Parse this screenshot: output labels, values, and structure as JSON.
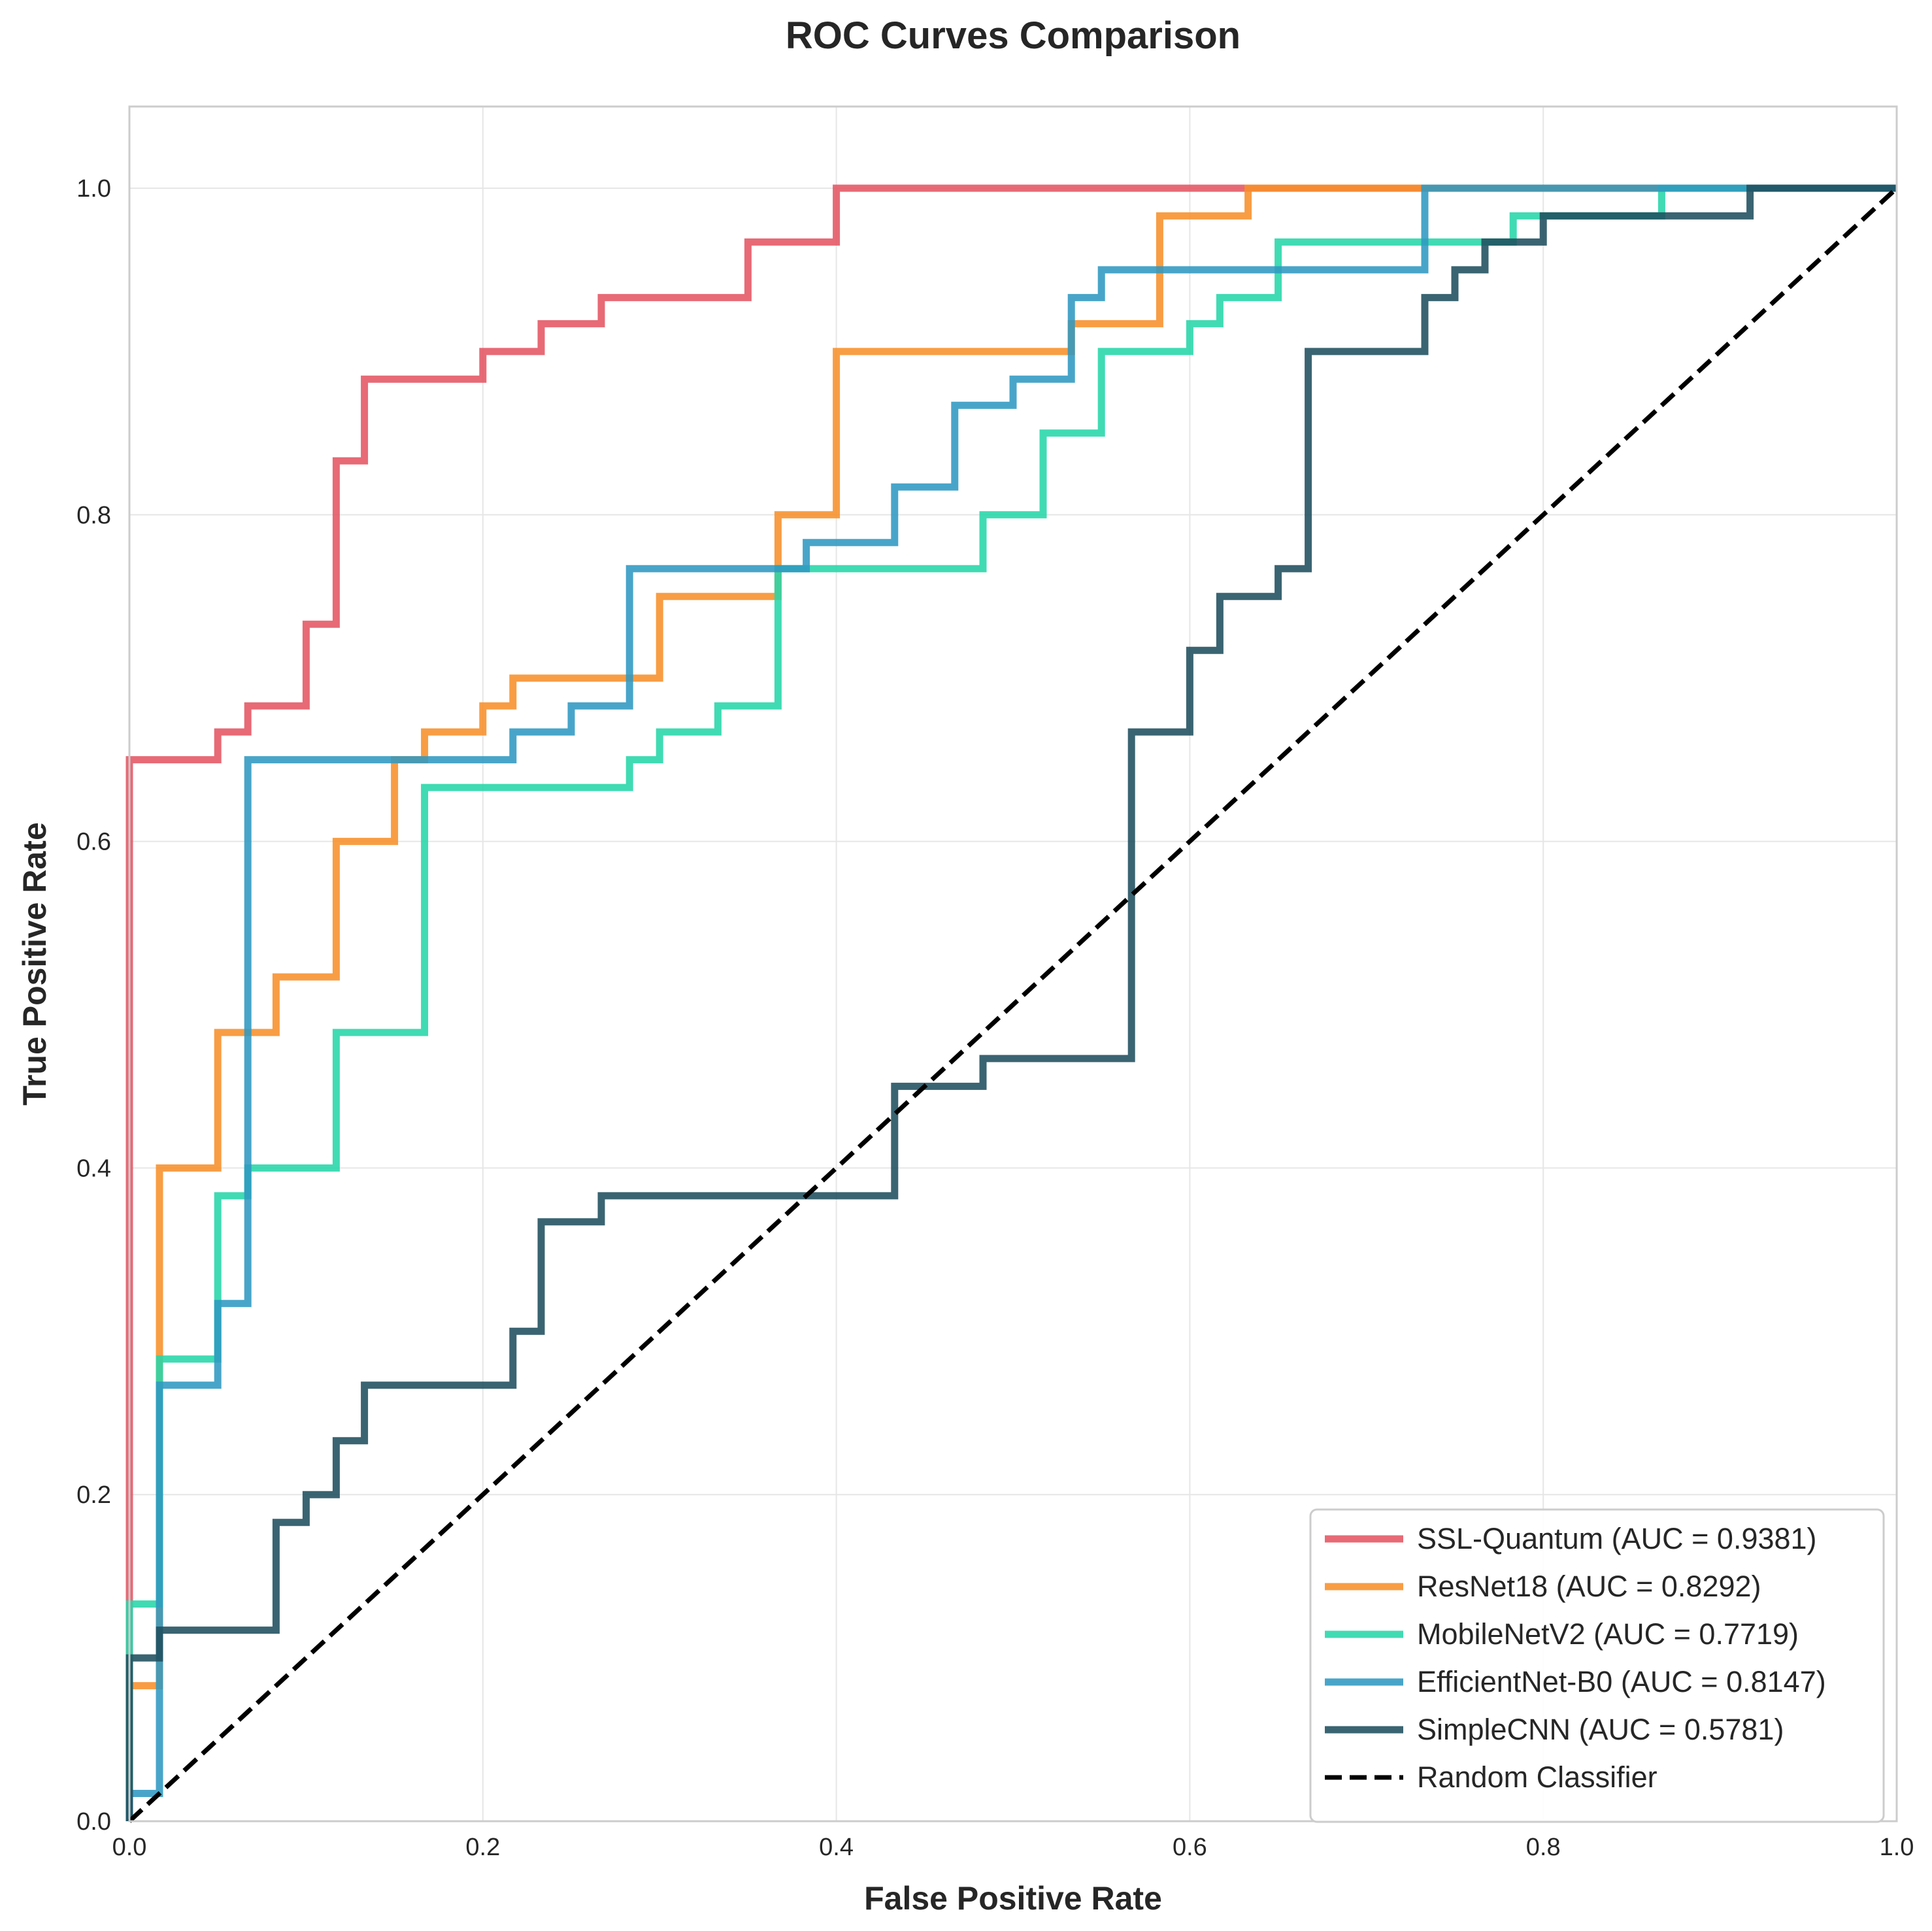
{
  "chart_data": {
    "type": "line",
    "title": "ROC Curves Comparison",
    "xlabel": "False Positive Rate",
    "ylabel": "True Positive Rate",
    "xlim": [
      0.0,
      1.0
    ],
    "ylim": [
      0.0,
      1.05
    ],
    "xticks": [
      "0.0",
      "0.2",
      "0.4",
      "0.6",
      "0.8",
      "1.0"
    ],
    "yticks": [
      "0.0",
      "0.2",
      "0.4",
      "0.6",
      "0.8",
      "1.0"
    ],
    "grid": true,
    "legend_position": "lower-right",
    "series": [
      {
        "name": "SSL-Quantum (AUC = 0.9381)",
        "color": "#e45563",
        "points": [
          [
            0,
            0
          ],
          [
            0,
            0.65
          ],
          [
            0.05,
            0.65
          ],
          [
            0.05,
            0.667
          ],
          [
            0.067,
            0.667
          ],
          [
            0.067,
            0.683
          ],
          [
            0.1,
            0.683
          ],
          [
            0.1,
            0.733
          ],
          [
            0.117,
            0.733
          ],
          [
            0.117,
            0.833
          ],
          [
            0.133,
            0.833
          ],
          [
            0.133,
            0.883
          ],
          [
            0.2,
            0.883
          ],
          [
            0.2,
            0.9
          ],
          [
            0.233,
            0.9
          ],
          [
            0.233,
            0.917
          ],
          [
            0.267,
            0.917
          ],
          [
            0.267,
            0.933
          ],
          [
            0.35,
            0.933
          ],
          [
            0.35,
            0.967
          ],
          [
            0.4,
            0.967
          ],
          [
            0.4,
            1.0
          ],
          [
            1.0,
            1.0
          ]
        ]
      },
      {
        "name": "ResNet18 (AUC = 0.8292)",
        "color": "#f78f2a",
        "points": [
          [
            0,
            0
          ],
          [
            0,
            0.083
          ],
          [
            0.017,
            0.083
          ],
          [
            0.017,
            0.4
          ],
          [
            0.05,
            0.4
          ],
          [
            0.05,
            0.483
          ],
          [
            0.083,
            0.483
          ],
          [
            0.083,
            0.517
          ],
          [
            0.117,
            0.517
          ],
          [
            0.117,
            0.6
          ],
          [
            0.15,
            0.6
          ],
          [
            0.15,
            0.65
          ],
          [
            0.167,
            0.65
          ],
          [
            0.167,
            0.667
          ],
          [
            0.2,
            0.667
          ],
          [
            0.2,
            0.683
          ],
          [
            0.217,
            0.683
          ],
          [
            0.217,
            0.7
          ],
          [
            0.3,
            0.7
          ],
          [
            0.3,
            0.75
          ],
          [
            0.367,
            0.75
          ],
          [
            0.367,
            0.8
          ],
          [
            0.4,
            0.8
          ],
          [
            0.4,
            0.9
          ],
          [
            0.533,
            0.9
          ],
          [
            0.533,
            0.917
          ],
          [
            0.583,
            0.917
          ],
          [
            0.583,
            0.983
          ],
          [
            0.633,
            0.983
          ],
          [
            0.633,
            1.0
          ],
          [
            1.0,
            1.0
          ]
        ]
      },
      {
        "name": "MobileNetV2 (AUC = 0.7719)",
        "color": "#26d6a9",
        "points": [
          [
            0,
            0
          ],
          [
            0,
            0.133
          ],
          [
            0.017,
            0.133
          ],
          [
            0.017,
            0.283
          ],
          [
            0.05,
            0.283
          ],
          [
            0.05,
            0.383
          ],
          [
            0.067,
            0.383
          ],
          [
            0.067,
            0.4
          ],
          [
            0.117,
            0.4
          ],
          [
            0.117,
            0.483
          ],
          [
            0.167,
            0.483
          ],
          [
            0.167,
            0.633
          ],
          [
            0.283,
            0.633
          ],
          [
            0.283,
            0.65
          ],
          [
            0.3,
            0.65
          ],
          [
            0.3,
            0.667
          ],
          [
            0.333,
            0.667
          ],
          [
            0.333,
            0.683
          ],
          [
            0.367,
            0.683
          ],
          [
            0.367,
            0.767
          ],
          [
            0.483,
            0.767
          ],
          [
            0.483,
            0.8
          ],
          [
            0.517,
            0.8
          ],
          [
            0.517,
            0.85
          ],
          [
            0.55,
            0.85
          ],
          [
            0.55,
            0.9
          ],
          [
            0.6,
            0.9
          ],
          [
            0.6,
            0.917
          ],
          [
            0.617,
            0.917
          ],
          [
            0.617,
            0.933
          ],
          [
            0.65,
            0.933
          ],
          [
            0.65,
            0.967
          ],
          [
            0.783,
            0.967
          ],
          [
            0.783,
            0.983
          ],
          [
            0.867,
            0.983
          ],
          [
            0.867,
            1.0
          ],
          [
            1.0,
            1.0
          ]
        ]
      },
      {
        "name": "EfficientNet-B0 (AUC = 0.8147)",
        "color": "#2f98c1",
        "points": [
          [
            0,
            0
          ],
          [
            0,
            0.017
          ],
          [
            0.017,
            0.017
          ],
          [
            0.017,
            0.267
          ],
          [
            0.05,
            0.267
          ],
          [
            0.05,
            0.317
          ],
          [
            0.067,
            0.317
          ],
          [
            0.067,
            0.65
          ],
          [
            0.217,
            0.65
          ],
          [
            0.217,
            0.667
          ],
          [
            0.25,
            0.667
          ],
          [
            0.25,
            0.683
          ],
          [
            0.283,
            0.683
          ],
          [
            0.283,
            0.767
          ],
          [
            0.383,
            0.767
          ],
          [
            0.383,
            0.783
          ],
          [
            0.433,
            0.783
          ],
          [
            0.433,
            0.817
          ],
          [
            0.467,
            0.817
          ],
          [
            0.467,
            0.867
          ],
          [
            0.5,
            0.867
          ],
          [
            0.5,
            0.883
          ],
          [
            0.533,
            0.883
          ],
          [
            0.533,
            0.933
          ],
          [
            0.55,
            0.933
          ],
          [
            0.55,
            0.95
          ],
          [
            0.733,
            0.95
          ],
          [
            0.733,
            1.0
          ],
          [
            1.0,
            1.0
          ]
        ]
      },
      {
        "name": "SimpleCNN (AUC = 0.5781)",
        "color": "#1f4e5f",
        "points": [
          [
            0,
            0
          ],
          [
            0,
            0.1
          ],
          [
            0.017,
            0.1
          ],
          [
            0.017,
            0.117
          ],
          [
            0.083,
            0.117
          ],
          [
            0.083,
            0.183
          ],
          [
            0.1,
            0.183
          ],
          [
            0.1,
            0.2
          ],
          [
            0.117,
            0.2
          ],
          [
            0.117,
            0.233
          ],
          [
            0.133,
            0.233
          ],
          [
            0.133,
            0.267
          ],
          [
            0.217,
            0.267
          ],
          [
            0.217,
            0.3
          ],
          [
            0.233,
            0.3
          ],
          [
            0.233,
            0.367
          ],
          [
            0.267,
            0.367
          ],
          [
            0.267,
            0.383
          ],
          [
            0.433,
            0.383
          ],
          [
            0.433,
            0.45
          ],
          [
            0.483,
            0.45
          ],
          [
            0.483,
            0.467
          ],
          [
            0.567,
            0.467
          ],
          [
            0.567,
            0.667
          ],
          [
            0.6,
            0.667
          ],
          [
            0.6,
            0.717
          ],
          [
            0.617,
            0.717
          ],
          [
            0.617,
            0.75
          ],
          [
            0.65,
            0.75
          ],
          [
            0.65,
            0.767
          ],
          [
            0.667,
            0.767
          ],
          [
            0.667,
            0.9
          ],
          [
            0.733,
            0.9
          ],
          [
            0.733,
            0.933
          ],
          [
            0.75,
            0.933
          ],
          [
            0.75,
            0.95
          ],
          [
            0.767,
            0.95
          ],
          [
            0.767,
            0.967
          ],
          [
            0.8,
            0.967
          ],
          [
            0.8,
            0.983
          ],
          [
            0.917,
            0.983
          ],
          [
            0.917,
            1.0
          ],
          [
            1.0,
            1.0
          ]
        ]
      },
      {
        "name": "Random Classifier",
        "color": "#000000",
        "dashed": true,
        "points": [
          [
            0,
            0
          ],
          [
            1,
            1
          ]
        ]
      }
    ]
  }
}
